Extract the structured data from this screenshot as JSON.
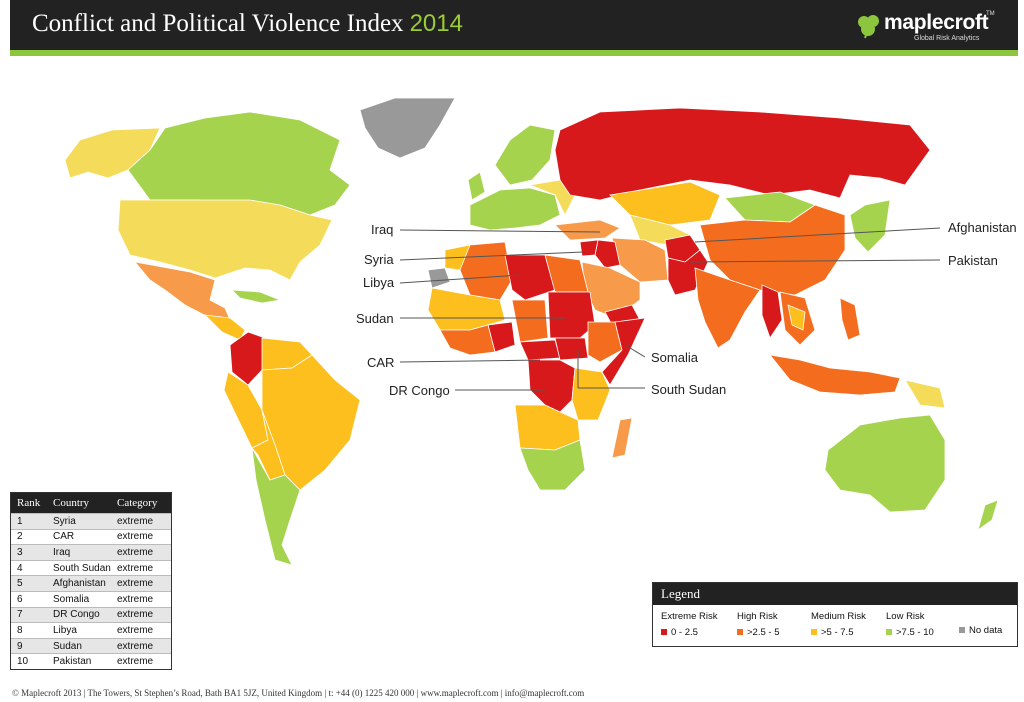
{
  "header": {
    "title": "Conflict and Political Violence Index",
    "year": "2014",
    "brand": "maplecroft",
    "tagline": "Global Risk Analytics",
    "trademark": "TM"
  },
  "colors": {
    "extreme": "#d7191c",
    "high": "#f46d1e",
    "medium": "#fdbf1e",
    "low": "#a6d34e",
    "nodata": "#999999",
    "medium_light": "#f4dc5a",
    "accent_green": "#8cc63f"
  },
  "map_labels": {
    "iraq": "Iraq",
    "syria": "Syria",
    "libya": "Libya",
    "sudan": "Sudan",
    "car": "CAR",
    "dr_congo": "DR Congo",
    "afghanistan": "Afghanistan",
    "pakistan": "Pakistan",
    "somalia": "Somalia",
    "south_sudan": "South Sudan"
  },
  "ranking": {
    "headers": {
      "rank": "Rank",
      "country": "Country",
      "category": "Category"
    },
    "rows": [
      {
        "rank": "1",
        "country": "Syria",
        "category": "extreme"
      },
      {
        "rank": "2",
        "country": "CAR",
        "category": "extreme"
      },
      {
        "rank": "3",
        "country": "Iraq",
        "category": "extreme"
      },
      {
        "rank": "4",
        "country": "South Sudan",
        "category": "extreme"
      },
      {
        "rank": "5",
        "country": "Afghanistan",
        "category": "extreme"
      },
      {
        "rank": "6",
        "country": "Somalia",
        "category": "extreme"
      },
      {
        "rank": "7",
        "country": "DR Congo",
        "category": "extreme"
      },
      {
        "rank": "8",
        "country": "Libya",
        "category": "extreme"
      },
      {
        "rank": "9",
        "country": "Sudan",
        "category": "extreme"
      },
      {
        "rank": "10",
        "country": "Pakistan",
        "category": "extreme"
      }
    ]
  },
  "legend": {
    "title": "Legend",
    "items": [
      {
        "category": "Extreme Risk",
        "range": "0 - 2.5"
      },
      {
        "category": "High Risk",
        "range": ">2.5 - 5"
      },
      {
        "category": "Medium Risk",
        "range": ">5 - 7.5"
      },
      {
        "category": "Low Risk",
        "range": ">7.5 - 10"
      },
      {
        "category": "",
        "range": "No data"
      }
    ]
  },
  "footer": "© Maplecroft 2013 | The Towers, St Stephen’s Road, Bath BA1 5JZ, United Kingdom | t: +44 (0) 1225 420 000 | www.maplecroft.com | info@maplecroft.com"
}
